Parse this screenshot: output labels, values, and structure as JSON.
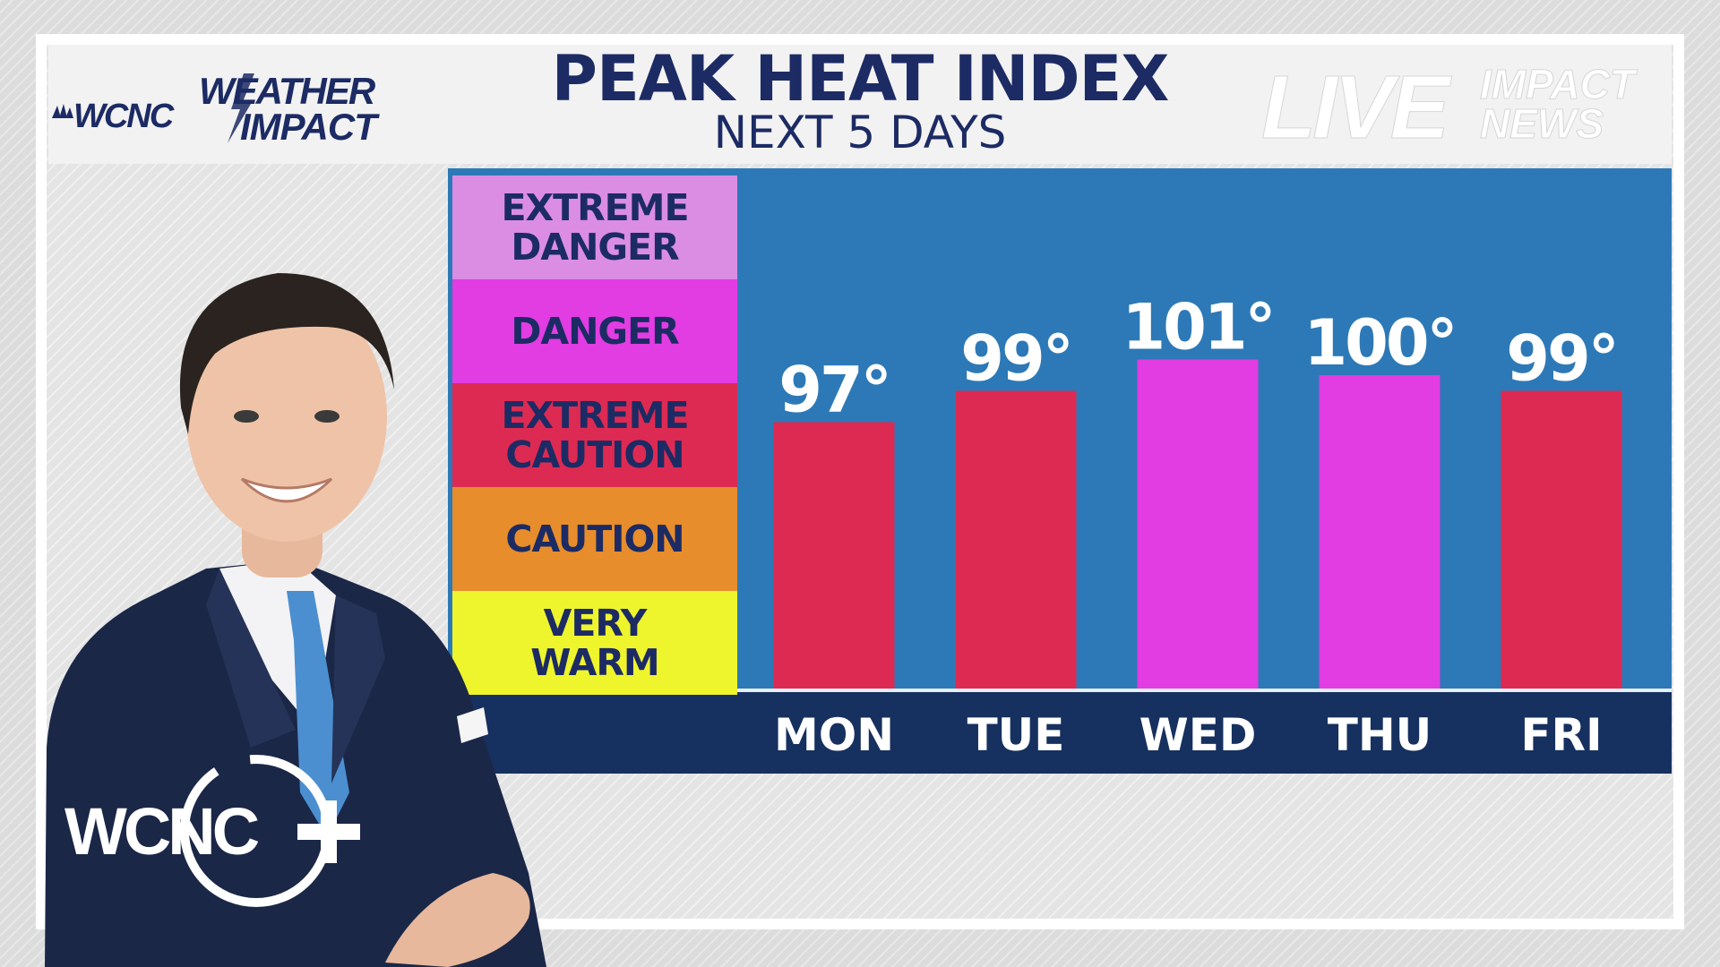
{
  "header": {
    "title": "PEAK HEAT INDEX",
    "subtitle": "NEXT 5 DAYS"
  },
  "branding": {
    "station_logo_text": "WCNC",
    "weather_impact_line1": "WEATHER",
    "weather_impact_line2": "IMPACT",
    "live_text": "LIVE",
    "impact_news_line1": "IMPACT",
    "impact_news_line2": "NEWS",
    "plus_logo_text": "WCNC"
  },
  "legend": {
    "items": [
      {
        "label": "EXTREME\nDANGER",
        "color": "#db8de4"
      },
      {
        "label": "DANGER",
        "color": "#e23ce3"
      },
      {
        "label": "EXTREME\nCAUTION",
        "color": "#dd2a52"
      },
      {
        "label": "CAUTION",
        "color": "#e78d2c"
      },
      {
        "label": "VERY\nWARM",
        "color": "#eef52d"
      }
    ]
  },
  "chart_data": {
    "type": "bar",
    "title": "PEAK HEAT INDEX",
    "subtitle": "NEXT 5 DAYS",
    "categories": [
      "MON",
      "TUE",
      "WED",
      "THU",
      "FRI"
    ],
    "values": [
      97,
      99,
      101,
      100,
      99
    ],
    "value_labels": [
      "97°",
      "99°",
      "101°",
      "100°",
      "99°"
    ],
    "bar_colors": [
      "#dd2a52",
      "#dd2a52",
      "#e23ce3",
      "#e23ce3",
      "#dd2a52"
    ],
    "unit": "°F",
    "grid": false,
    "legend_placement": "left"
  },
  "colors": {
    "panel_blue": "#2d79b7",
    "axis_navy": "#16305f",
    "title_navy": "#1c2b64"
  }
}
